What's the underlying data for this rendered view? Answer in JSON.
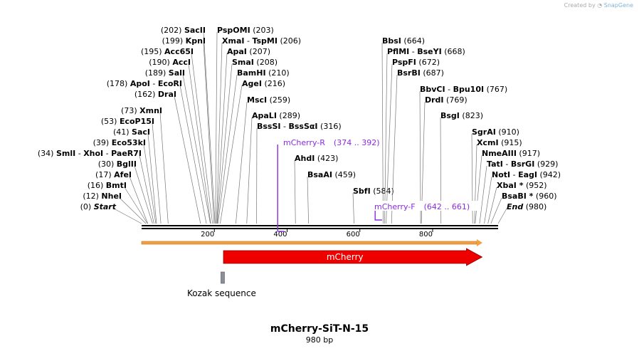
{
  "brand": {
    "prefix": "Created by",
    "name": "SnapGene"
  },
  "title": "mCherry-SiT-N-15",
  "length_label": "980 bp",
  "sequence_length": 980,
  "ticks": [
    200,
    400,
    600,
    800
  ],
  "sites": [
    {
      "label": "(202)",
      "parts": [
        "SacII"
      ],
      "pos": 202
    },
    {
      "label": "(199)",
      "parts": [
        "KpnI"
      ],
      "pos": 199
    },
    {
      "label": "(195)",
      "parts": [
        "Acc65I"
      ],
      "pos": 195
    },
    {
      "label": "(190)",
      "parts": [
        "AccI"
      ],
      "pos": 190
    },
    {
      "label": "(189)",
      "parts": [
        "SalI"
      ],
      "pos": 189
    },
    {
      "label": "(178)",
      "parts": [
        "ApoI",
        "EcoRI"
      ],
      "pos": 178
    },
    {
      "label": "(162)",
      "parts": [
        "DraI"
      ],
      "pos": 162
    },
    {
      "label": "(73)",
      "parts": [
        "XmnI"
      ],
      "pos": 73
    },
    {
      "label": "(53)",
      "parts": [
        "EcoP15I"
      ],
      "pos": 53
    },
    {
      "label": "(41)",
      "parts": [
        "SacI"
      ],
      "pos": 41
    },
    {
      "label": "(39)",
      "parts": [
        "Eco53kI"
      ],
      "pos": 39
    },
    {
      "label": "(34)",
      "parts": [
        "SmlI",
        "XhoI",
        "PaeR7I"
      ],
      "pos": 34
    },
    {
      "label": "(30)",
      "parts": [
        "BglII"
      ],
      "pos": 30
    },
    {
      "label": "(17)",
      "parts": [
        "AfeI"
      ],
      "pos": 17
    },
    {
      "label": "(16)",
      "parts": [
        "BmtI"
      ],
      "pos": 16
    },
    {
      "label": "(12)",
      "parts": [
        "NheI"
      ],
      "pos": 12
    },
    {
      "label": "(0)",
      "parts": [
        "Start"
      ],
      "pos": 0,
      "italic": true
    },
    {
      "label": "(203)",
      "parts": [
        "PspOMI"
      ],
      "pos": 203
    },
    {
      "label": "(206)",
      "parts": [
        "XmaI",
        "TspMI"
      ],
      "pos": 206
    },
    {
      "label": "(207)",
      "parts": [
        "ApaI"
      ],
      "pos": 207
    },
    {
      "label": "(208)",
      "parts": [
        "SmaI"
      ],
      "pos": 208
    },
    {
      "label": "(210)",
      "parts": [
        "BamHI"
      ],
      "pos": 210
    },
    {
      "label": "(216)",
      "parts": [
        "AgeI"
      ],
      "pos": 216
    },
    {
      "label": "(259)",
      "parts": [
        "MscI"
      ],
      "pos": 259
    },
    {
      "label": "(289)",
      "parts": [
        "ApaLI"
      ],
      "pos": 289
    },
    {
      "label": "(316)",
      "parts": [
        "BssSI",
        "BssSαI"
      ],
      "pos": 316
    },
    {
      "label": "(423)",
      "parts": [
        "AhdI"
      ],
      "pos": 423
    },
    {
      "label": "(459)",
      "parts": [
        "BsaAI"
      ],
      "pos": 459
    },
    {
      "label": "(584)",
      "parts": [
        "SbfI"
      ],
      "pos": 584
    },
    {
      "label": "(664)",
      "parts": [
        "BbsI"
      ],
      "pos": 664
    },
    {
      "label": "(668)",
      "parts": [
        "PflMI",
        "BseYI"
      ],
      "pos": 668
    },
    {
      "label": "(672)",
      "parts": [
        "PspFI"
      ],
      "pos": 672
    },
    {
      "label": "(687)",
      "parts": [
        "BsrBI"
      ],
      "pos": 687
    },
    {
      "label": "(767)",
      "parts": [
        "BbvCI",
        "Bpu10I"
      ],
      "pos": 767
    },
    {
      "label": "(769)",
      "parts": [
        "DrdI"
      ],
      "pos": 769
    },
    {
      "label": "(823)",
      "parts": [
        "BsgI"
      ],
      "pos": 823
    },
    {
      "label": "(910)",
      "parts": [
        "SgrAI"
      ],
      "pos": 910
    },
    {
      "label": "(915)",
      "parts": [
        "XcmI"
      ],
      "pos": 915
    },
    {
      "label": "(917)",
      "parts": [
        "NmeAIII"
      ],
      "pos": 917
    },
    {
      "label": "(929)",
      "parts": [
        "TatI",
        "BsrGI"
      ],
      "pos": 929
    },
    {
      "label": "(942)",
      "parts": [
        "NotI",
        "EagI"
      ],
      "pos": 942
    },
    {
      "label": "(952)",
      "parts": [
        "XbaI *"
      ],
      "pos": 952
    },
    {
      "label": "(960)",
      "parts": [
        "BsaBI *"
      ],
      "pos": 960
    },
    {
      "label": "(980)",
      "parts": [
        "End"
      ],
      "pos": 980,
      "italic": true
    }
  ],
  "primers": [
    {
      "name": "mCherry-R",
      "range": "(374 .. 392)",
      "start": 374,
      "end": 392,
      "strand": "reverse"
    },
    {
      "name": "mCherry-F",
      "range": "(642 .. 661)",
      "start": 642,
      "end": 661,
      "strand": "forward"
    }
  ],
  "features": [
    {
      "name": "mCherry",
      "start": 225,
      "end": 936,
      "color": "#ee0000"
    },
    {
      "name": "Kozak sequence",
      "start": 220,
      "end": 225,
      "color": "#8a9099"
    }
  ],
  "colors": {
    "primer": "#8a2be2",
    "orf": "#f2a040"
  }
}
